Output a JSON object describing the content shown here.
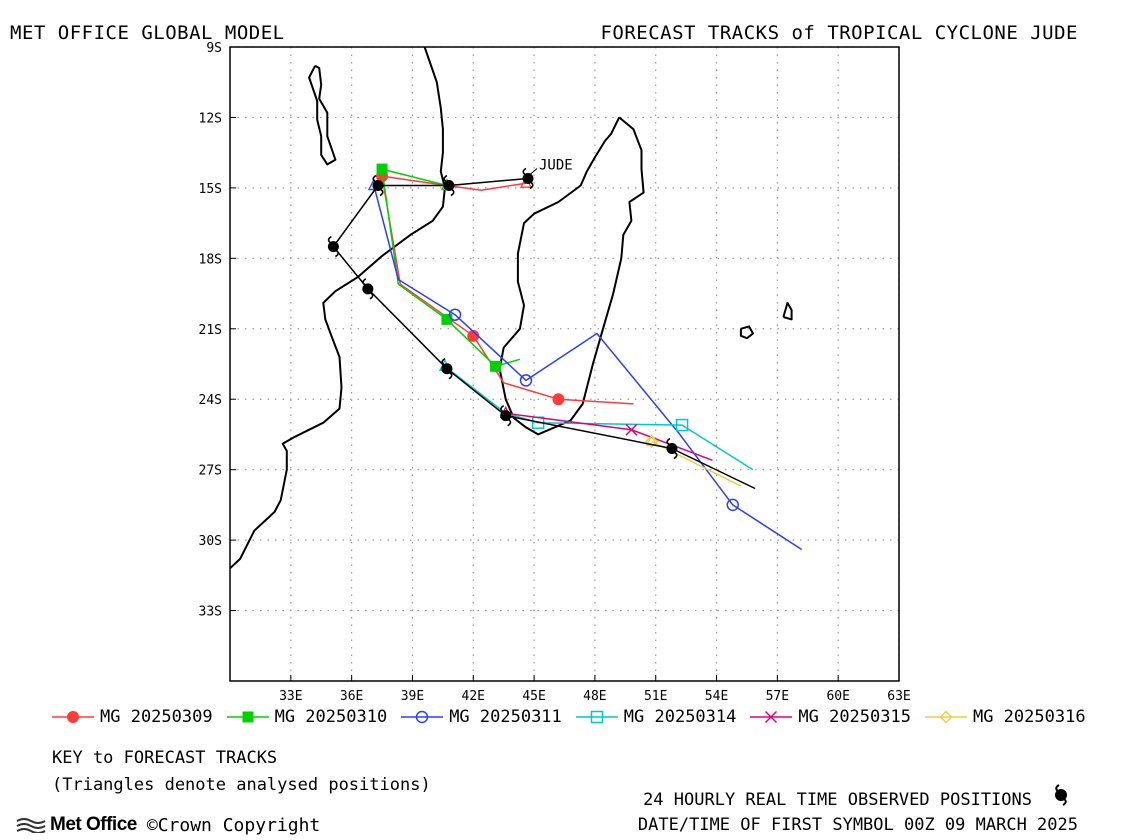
{
  "header": {
    "left": "MET OFFICE GLOBAL MODEL",
    "right": "FORECAST TRACKS of TROPICAL CYCLONE JUDE"
  },
  "chart_data": {
    "type": "line",
    "subtype": "map-track",
    "xlim": [
      30,
      63
    ],
    "ylim": [
      -36,
      -9
    ],
    "x_ticks": [
      "33E",
      "36E",
      "39E",
      "42E",
      "45E",
      "48E",
      "51E",
      "54E",
      "57E",
      "60E",
      "63E"
    ],
    "y_ticks": [
      "9S",
      "12S",
      "15S",
      "18S",
      "21S",
      "24S",
      "27S",
      "30S",
      "33S"
    ],
    "grid": true,
    "storm_label": "JUDE",
    "observed_track": {
      "name": "24 HOURLY REAL TIME OBSERVED POSITIONS",
      "color": "#000000",
      "points": [
        [
          44.7,
          -14.6
        ],
        [
          40.8,
          -14.9
        ],
        [
          37.3,
          -14.9
        ],
        [
          35.1,
          -17.5
        ],
        [
          36.8,
          -19.3
        ],
        [
          40.7,
          -22.7
        ],
        [
          43.6,
          -24.7
        ],
        [
          51.8,
          -26.1
        ],
        [
          55.9,
          -27.8
        ]
      ],
      "symbol_points": [
        [
          44.7,
          -14.6
        ],
        [
          40.8,
          -14.9
        ],
        [
          37.3,
          -14.9
        ],
        [
          35.1,
          -17.5
        ],
        [
          36.8,
          -19.3
        ],
        [
          40.7,
          -22.7
        ],
        [
          43.6,
          -24.7
        ],
        [
          51.8,
          -26.1
        ]
      ]
    },
    "series": [
      {
        "name": "MG 20250309",
        "color": "#ff3b3b",
        "marker": "filled-circle",
        "points": [
          [
            44.6,
            -14.8
          ],
          [
            42.4,
            -15.1
          ],
          [
            40.7,
            -14.9
          ],
          [
            37.5,
            -14.5
          ],
          [
            38.4,
            -19.1
          ],
          [
            42.0,
            -21.3
          ],
          [
            43.5,
            -23.3
          ],
          [
            46.2,
            -24.0
          ],
          [
            49.9,
            -24.2
          ]
        ],
        "marker_points": [
          [
            37.5,
            -14.5
          ],
          [
            42.0,
            -21.3
          ],
          [
            46.2,
            -24.0
          ]
        ]
      },
      {
        "name": "MG 20250310",
        "color": "#00d000",
        "marker": "filled-square",
        "points": [
          [
            40.7,
            -14.9
          ],
          [
            37.5,
            -14.2
          ],
          [
            38.3,
            -19.1
          ],
          [
            40.7,
            -20.6
          ],
          [
            43.1,
            -22.6
          ],
          [
            44.3,
            -22.3
          ]
        ],
        "marker_points": [
          [
            37.5,
            -14.2
          ],
          [
            40.7,
            -20.6
          ],
          [
            43.1,
            -22.6
          ]
        ]
      },
      {
        "name": "MG 20250311",
        "color": "#2a3fff",
        "marker": "open-circle",
        "points": [
          [
            37.1,
            -14.9
          ],
          [
            38.3,
            -18.9
          ],
          [
            41.1,
            -20.4
          ],
          [
            44.6,
            -23.2
          ],
          [
            48.1,
            -21.2
          ],
          [
            52.1,
            -25.4
          ],
          [
            54.8,
            -28.5
          ],
          [
            58.2,
            -30.4
          ]
        ],
        "marker_points": [
          [
            41.1,
            -20.4
          ],
          [
            44.6,
            -23.2
          ],
          [
            54.8,
            -28.5
          ]
        ]
      },
      {
        "name": "MG 20250314",
        "color": "#00c8c8",
        "marker": "open-square",
        "points": [
          [
            40.6,
            -22.6
          ],
          [
            43.6,
            -24.6
          ],
          [
            45.2,
            -25.0
          ],
          [
            52.3,
            -25.1
          ],
          [
            55.8,
            -27.0
          ]
        ],
        "marker_points": [
          [
            45.2,
            -25.0
          ],
          [
            52.3,
            -25.1
          ]
        ]
      },
      {
        "name": "MG 20250315",
        "color": "#e0007a",
        "marker": "x",
        "points": [
          [
            43.6,
            -24.6
          ],
          [
            49.8,
            -25.3
          ],
          [
            53.8,
            -26.6
          ]
        ],
        "marker_points": [
          [
            49.8,
            -25.3
          ]
        ]
      },
      {
        "name": "MG 20250316",
        "color": "#e8d040",
        "marker": "open-diamond",
        "points": [
          [
            50.8,
            -25.8
          ],
          [
            55.2,
            -27.7
          ]
        ],
        "marker_points": [
          [
            50.8,
            -25.8
          ]
        ]
      }
    ],
    "key_title": "KEY to FORECAST TRACKS",
    "key_note": "(Triangles denote analysed positions)",
    "obs_label": "24 HOURLY REAL TIME OBSERVED POSITIONS",
    "date_label": "DATE/TIME OF FIRST SYMBOL 00Z 09 MARCH 2025"
  },
  "coastlines": {
    "africa": [
      [
        30.0,
        -31.2
      ],
      [
        30.5,
        -30.8
      ],
      [
        31.2,
        -29.6
      ],
      [
        32.2,
        -28.8
      ],
      [
        32.5,
        -28.3
      ],
      [
        32.8,
        -27.0
      ],
      [
        32.8,
        -26.2
      ],
      [
        32.6,
        -25.9
      ],
      [
        33.2,
        -25.6
      ],
      [
        34.6,
        -25.0
      ],
      [
        35.4,
        -24.4
      ],
      [
        35.5,
        -23.5
      ],
      [
        35.4,
        -22.2
      ],
      [
        35.0,
        -21.3
      ],
      [
        34.7,
        -20.6
      ],
      [
        34.6,
        -19.9
      ],
      [
        35.2,
        -19.4
      ],
      [
        36.3,
        -18.8
      ],
      [
        37.5,
        -17.9
      ],
      [
        38.9,
        -17.0
      ],
      [
        40.0,
        -16.4
      ],
      [
        40.5,
        -15.8
      ],
      [
        40.6,
        -15.0
      ],
      [
        40.4,
        -14.3
      ],
      [
        40.5,
        -13.5
      ],
      [
        40.5,
        -12.5
      ],
      [
        40.4,
        -11.6
      ],
      [
        40.2,
        -10.5
      ],
      [
        39.6,
        -9.0
      ]
    ],
    "madagascar": [
      [
        49.2,
        -12.0
      ],
      [
        49.9,
        -12.5
      ],
      [
        50.3,
        -13.4
      ],
      [
        50.3,
        -14.2
      ],
      [
        50.4,
        -15.2
      ],
      [
        49.7,
        -15.6
      ],
      [
        49.8,
        -16.4
      ],
      [
        49.4,
        -17.0
      ],
      [
        49.3,
        -18.0
      ],
      [
        48.9,
        -19.5
      ],
      [
        48.4,
        -21.0
      ],
      [
        47.9,
        -22.5
      ],
      [
        47.4,
        -24.2
      ],
      [
        46.8,
        -24.9
      ],
      [
        46.0,
        -25.2
      ],
      [
        45.2,
        -25.5
      ],
      [
        44.6,
        -25.2
      ],
      [
        44.0,
        -24.8
      ],
      [
        43.6,
        -24.0
      ],
      [
        43.3,
        -22.7
      ],
      [
        43.5,
        -21.8
      ],
      [
        44.3,
        -21.0
      ],
      [
        44.5,
        -20.0
      ],
      [
        44.2,
        -19.0
      ],
      [
        44.2,
        -17.8
      ],
      [
        44.5,
        -16.5
      ],
      [
        45.0,
        -16.1
      ],
      [
        46.2,
        -15.6
      ],
      [
        47.3,
        -14.9
      ],
      [
        47.6,
        -14.3
      ],
      [
        48.0,
        -13.7
      ],
      [
        48.5,
        -13.0
      ],
      [
        48.8,
        -12.7
      ],
      [
        49.2,
        -12.0
      ]
    ],
    "lake_malawi": [
      [
        34.2,
        -9.8
      ],
      [
        34.4,
        -9.9
      ],
      [
        34.5,
        -10.6
      ],
      [
        34.4,
        -11.2
      ],
      [
        34.8,
        -11.8
      ],
      [
        34.8,
        -12.8
      ],
      [
        35.2,
        -13.8
      ],
      [
        34.8,
        -14.0
      ],
      [
        34.5,
        -13.6
      ],
      [
        34.5,
        -12.8
      ],
      [
        34.3,
        -12.1
      ],
      [
        34.3,
        -11.3
      ],
      [
        33.9,
        -10.3
      ],
      [
        34.2,
        -9.8
      ]
    ],
    "reunion": [
      [
        55.2,
        -21.0
      ],
      [
        55.6,
        -20.9
      ],
      [
        55.8,
        -21.2
      ],
      [
        55.5,
        -21.4
      ],
      [
        55.2,
        -21.3
      ],
      [
        55.2,
        -21.0
      ]
    ],
    "mauritius": [
      [
        57.3,
        -20.5
      ],
      [
        57.5,
        -19.9
      ],
      [
        57.7,
        -20.2
      ],
      [
        57.7,
        -20.6
      ],
      [
        57.3,
        -20.5
      ]
    ]
  },
  "footer": {
    "brand": "Met Office",
    "copyright": "©Crown Copyright"
  }
}
